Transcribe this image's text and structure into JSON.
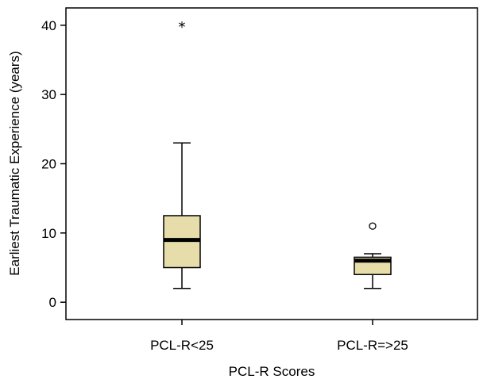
{
  "chart_data": {
    "type": "boxplot",
    "xlabel": "PCL-R Scores",
    "ylabel": "Earliest Traumatic Experience (years)",
    "categories": [
      "PCL-R<25",
      "PCL-R=>25"
    ],
    "ylim": [
      -2.5,
      42.5
    ],
    "yticks": [
      0,
      10,
      20,
      30,
      40
    ],
    "grid": false,
    "box_color": "#e6ddaa",
    "boxes": [
      {
        "category": "PCL-R<25",
        "whisker_low": 2,
        "q1": 5,
        "median": 9,
        "q3": 12.5,
        "whisker_high": 23,
        "outliers": [
          {
            "value": 40,
            "marker": "star"
          }
        ]
      },
      {
        "category": "PCL-R=>25",
        "whisker_low": 2,
        "q1": 4,
        "median": 6,
        "q3": 6.5,
        "whisker_high": 7,
        "outliers": [
          {
            "value": 11,
            "marker": "circle"
          }
        ]
      }
    ]
  }
}
